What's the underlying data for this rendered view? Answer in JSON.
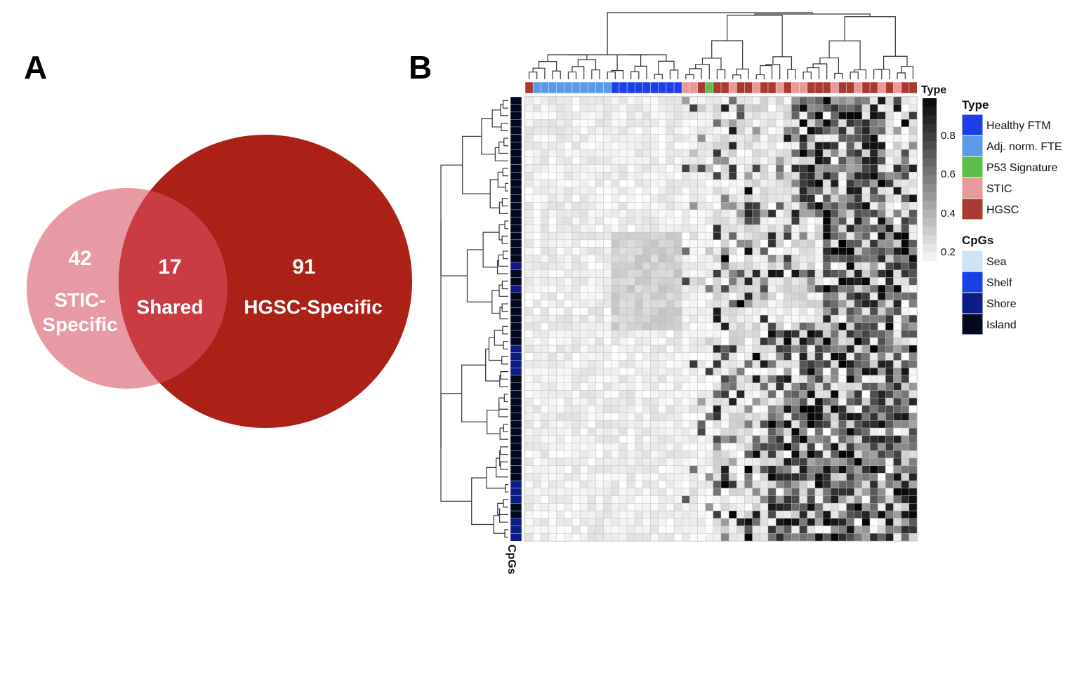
{
  "panels": {
    "a_label": "A",
    "b_label": "B"
  },
  "colors": {
    "stic_circle": "#e79aa3",
    "hgsc_circle": "#ab2118",
    "overlap": "#ca3c43",
    "healthy_ftm": "#1c3fe8",
    "adj_norm_fte": "#5a9ae8",
    "p53_signature": "#5cbf4a",
    "stic": "#e8999b",
    "hgsc": "#a93a33",
    "sea": "#cfe3f7",
    "shelf": "#1b3fe6",
    "shore": "#0d1b86",
    "island": "#05091f"
  },
  "chart_data": [
    {
      "type": "venn",
      "sets": [
        {
          "label_lines": [
            "STIC-",
            "Specific"
          ],
          "count": "42"
        },
        {
          "label_lines": [
            "Shared"
          ],
          "count": "17"
        },
        {
          "label_lines": [
            "HGSC-Specific"
          ],
          "count": "91"
        }
      ]
    },
    {
      "type": "heatmap",
      "column_annotation_label": "Type",
      "row_annotation_label": "CpGs",
      "color_scale": {
        "ticks": [
          "0.8",
          "0.6",
          "0.4",
          "0.2"
        ],
        "low": "#ffffff",
        "high": "#000000"
      },
      "legend_type": {
        "title": "Type",
        "items": [
          "Healthy FTM",
          "Adj. norm. FTE",
          "P53 Signature",
          "STIC",
          "HGSC"
        ]
      },
      "legend_cpgs": {
        "title": "CpGs",
        "items": [
          "Sea",
          "Shelf",
          "Shore",
          "Island"
        ]
      },
      "columns_count": 50,
      "rows_count": 59
    }
  ]
}
